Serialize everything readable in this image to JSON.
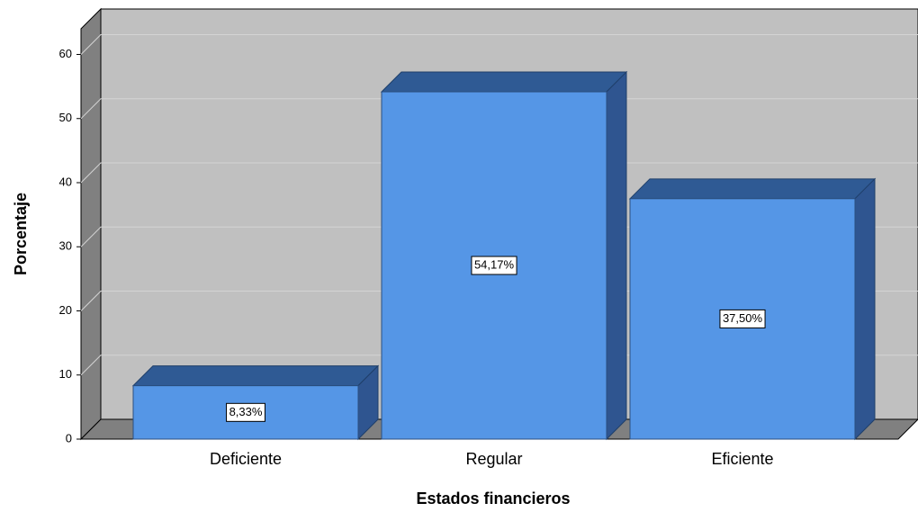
{
  "chart_data": {
    "type": "bar",
    "x_label": "Estados financieros",
    "y_label": "Porcentaje",
    "categories": [
      "Deficiente",
      "Regular",
      "Eficiente"
    ],
    "values": [
      8.33,
      54.17,
      37.5
    ],
    "value_labels": [
      "8,33%",
      "54,17%",
      "37,50%"
    ],
    "color": "#5596e6",
    "ylim": [
      0,
      64
    ],
    "yticks": [
      0,
      10,
      20,
      30,
      40,
      50,
      60
    ],
    "grid": true
  }
}
